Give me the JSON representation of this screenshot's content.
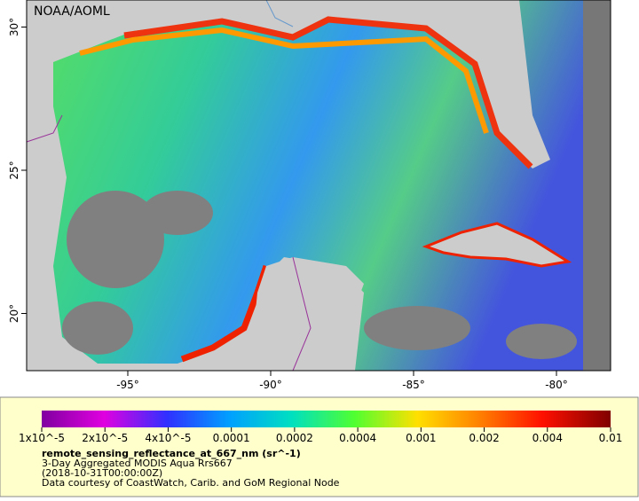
{
  "map": {
    "watermark": "NOAA/AOML",
    "axes": {
      "xticks": [
        {
          "value": -95,
          "label": "-95°"
        },
        {
          "value": -90,
          "label": "-90°"
        },
        {
          "value": -85,
          "label": "-85°"
        },
        {
          "value": -80,
          "label": "-80°"
        }
      ],
      "yticks": [
        {
          "value": 30,
          "label": "30°"
        },
        {
          "value": 25,
          "label": "25°"
        },
        {
          "value": 20,
          "label": "20°"
        }
      ]
    },
    "colorbar": {
      "labels": [
        "1x10^-5",
        "2x10^-5",
        "4x10^-5",
        "0.0001",
        "0.0002",
        "0.0004",
        "0.001",
        "0.002",
        "0.004",
        "0.01"
      ]
    },
    "legend": {
      "variable": "remote_sensing_reflectance_at_667_nm (sr^-1)",
      "lines": [
        "3-Day Aggregated MODIS Aqua Rrs667",
        "(2018-10-31T00:00:00Z)",
        "Data courtesy of CoastWatch, Carib. and GoM Regional Node"
      ]
    }
  }
}
